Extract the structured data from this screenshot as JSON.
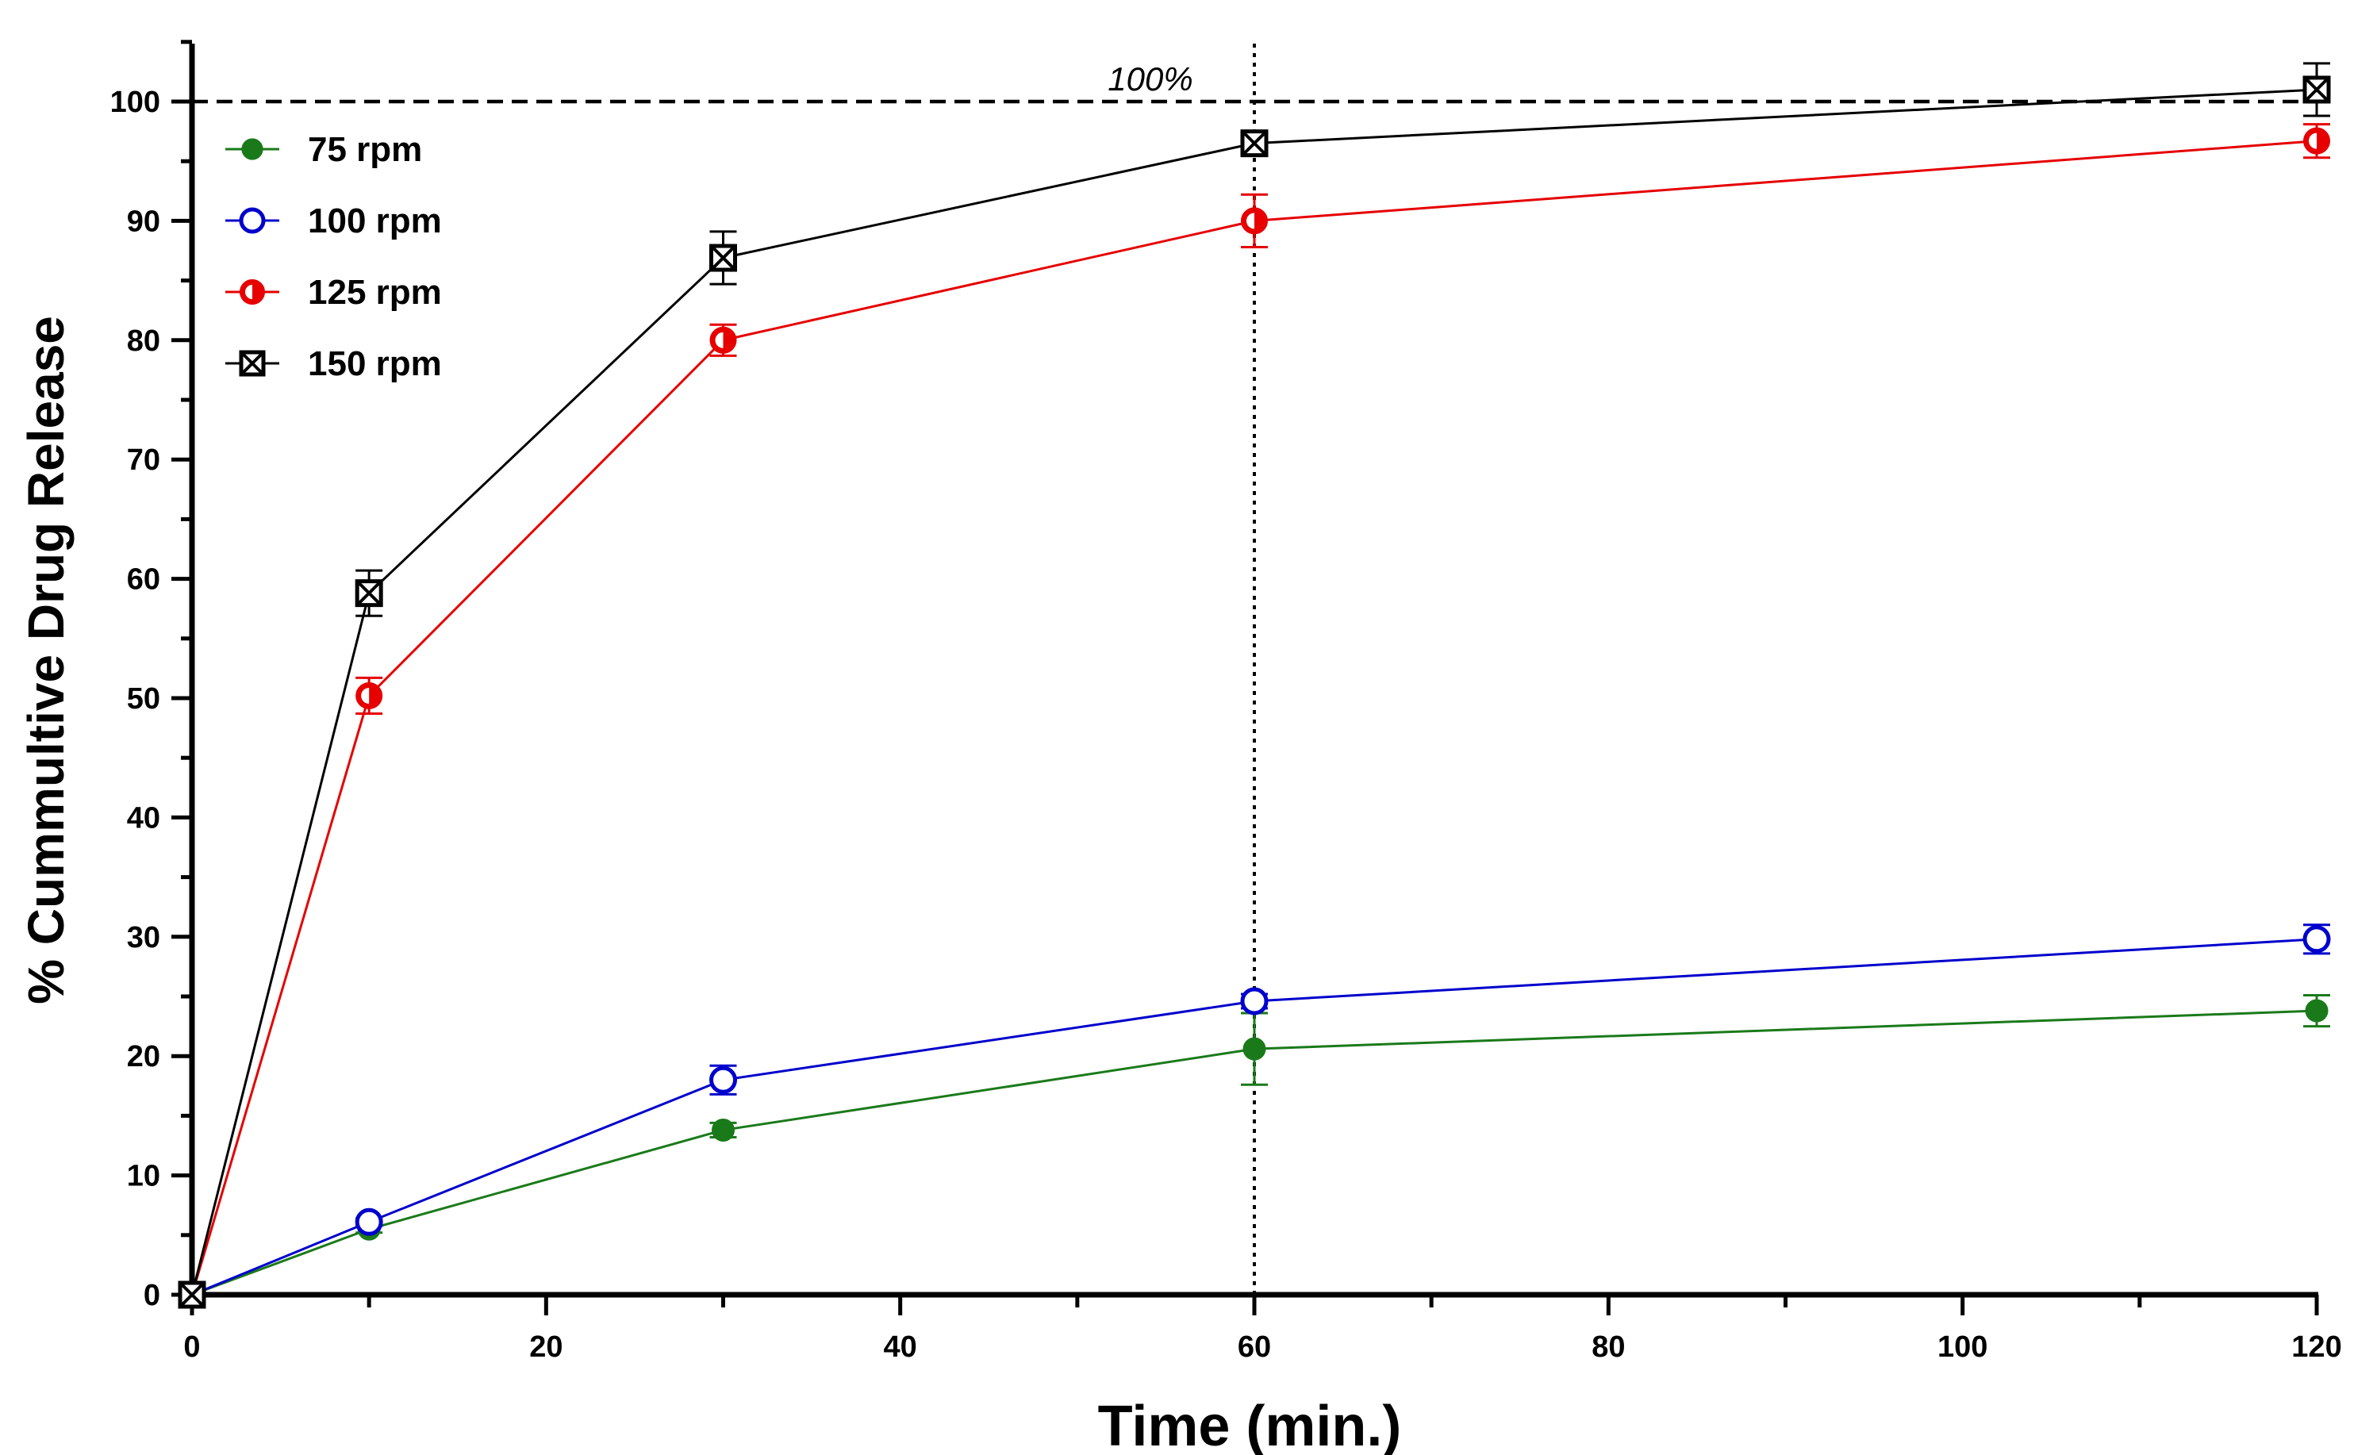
{
  "chart_data": {
    "type": "line",
    "title": "",
    "xlabel": "Time (min.)",
    "ylabel": "% Cummultive Drug Release",
    "xlim": [
      0,
      120
    ],
    "ylim": [
      0,
      105
    ],
    "x_ticks": [
      0,
      20,
      40,
      60,
      80,
      100,
      120
    ],
    "y_ticks": [
      0,
      10,
      20,
      30,
      40,
      50,
      60,
      70,
      80,
      90,
      100
    ],
    "grid": false,
    "legend_position": "top-left",
    "x": [
      0,
      10,
      30,
      60,
      120
    ],
    "series": [
      {
        "name": "75 rpm",
        "color": "#1a7a1a",
        "marker": "filled-circle",
        "values": [
          0,
          5.5,
          13.8,
          20.6,
          23.8
        ],
        "errors": [
          0,
          0.3,
          0.6,
          3.0,
          1.3
        ]
      },
      {
        "name": "100 rpm",
        "color": "#0000cc",
        "marker": "open-circle",
        "values": [
          0,
          6.1,
          18.0,
          24.6,
          29.8
        ],
        "errors": [
          0,
          0.3,
          1.2,
          0.6,
          1.2
        ]
      },
      {
        "name": "125 rpm",
        "color": "#e60000",
        "marker": "half-filled-circle",
        "values": [
          0,
          50.2,
          80.0,
          90.0,
          96.7
        ],
        "errors": [
          0,
          1.5,
          1.3,
          2.2,
          1.4
        ]
      },
      {
        "name": "150 rpm",
        "color": "#000000",
        "marker": "boxed-x",
        "values": [
          0,
          58.8,
          86.9,
          96.5,
          101.0
        ],
        "errors": [
          0,
          1.9,
          2.2,
          0.5,
          2.2
        ]
      }
    ],
    "reference_lines": [
      {
        "orientation": "horizontal",
        "value": 100,
        "style": "dashed",
        "label": "100%"
      },
      {
        "orientation": "vertical",
        "value": 60,
        "style": "dotted",
        "label": ""
      }
    ]
  }
}
